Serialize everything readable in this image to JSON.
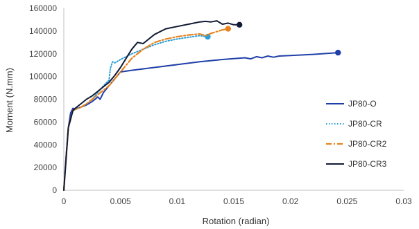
{
  "chart_data": {
    "type": "line",
    "xlabel": "Rotation (radian)",
    "ylabel": "Moment (N.mm)",
    "xlim": [
      0,
      0.03
    ],
    "ylim": [
      0,
      160000
    ],
    "x_ticks": [
      "0",
      "0.005",
      "0.01",
      "0.015",
      "0.02",
      "0.025",
      "0.03"
    ],
    "y_ticks": [
      "0",
      "20000",
      "40000",
      "60000",
      "80000",
      "100000",
      "120000",
      "140000",
      "160000"
    ],
    "grid": false,
    "legend_position": "right",
    "series": [
      {
        "name": "JP80-O",
        "color": "#1f3fa8",
        "dash": "solid",
        "end_marker": true,
        "x": [
          0,
          0.0002,
          0.0004,
          0.0006,
          0.0008,
          0.001,
          0.0015,
          0.002,
          0.0025,
          0.003,
          0.0032,
          0.0035,
          0.004,
          0.0045,
          0.005,
          0.006,
          0.008,
          0.01,
          0.012,
          0.014,
          0.016,
          0.0165,
          0.017,
          0.0175,
          0.018,
          0.0185,
          0.019,
          0.02,
          0.022,
          0.0242
        ],
        "y": [
          0,
          30000,
          55000,
          68000,
          72000,
          71500,
          73000,
          75000,
          78000,
          82000,
          80000,
          86000,
          92000,
          98000,
          104000,
          105500,
          108000,
          110500,
          113000,
          115000,
          116500,
          115500,
          117500,
          116500,
          118000,
          117000,
          118000,
          118500,
          119500,
          121000
        ]
      },
      {
        "name": "JP80-CR",
        "color": "#2a9fd6",
        "dash": "dotted",
        "end_marker": true,
        "x": [
          0,
          0.0004,
          0.0008,
          0.001,
          0.0015,
          0.002,
          0.0025,
          0.003,
          0.0035,
          0.004,
          0.0041,
          0.0043,
          0.0045,
          0.005,
          0.006,
          0.007,
          0.008,
          0.009,
          0.01,
          0.011,
          0.012,
          0.0127
        ],
        "y": [
          0,
          55000,
          70000,
          71000,
          73000,
          76000,
          80000,
          86000,
          92000,
          97000,
          107000,
          113000,
          112000,
          115000,
          120000,
          124000,
          128000,
          131000,
          133000,
          134500,
          136000,
          135000
        ]
      },
      {
        "name": "JP80-CR2",
        "color": "#e8821e",
        "dash": "dashdot",
        "end_marker": true,
        "x": [
          0,
          0.0004,
          0.0008,
          0.001,
          0.0015,
          0.002,
          0.0025,
          0.003,
          0.0035,
          0.004,
          0.0045,
          0.005,
          0.0055,
          0.006,
          0.007,
          0.008,
          0.009,
          0.01,
          0.011,
          0.012,
          0.0125,
          0.013,
          0.0135,
          0.014,
          0.0145
        ],
        "y": [
          0,
          55000,
          70000,
          71000,
          73000,
          76000,
          80000,
          84000,
          88000,
          92000,
          98000,
          104000,
          110000,
          116000,
          124000,
          130000,
          133000,
          135000,
          136500,
          137500,
          136000,
          138000,
          139500,
          141000,
          142000
        ]
      },
      {
        "name": "JP80-CR3",
        "color": "#111a33",
        "dash": "solid",
        "end_marker": true,
        "x": [
          0,
          0.0004,
          0.0008,
          0.001,
          0.0015,
          0.002,
          0.0025,
          0.003,
          0.0035,
          0.004,
          0.0045,
          0.005,
          0.0055,
          0.006,
          0.0065,
          0.007,
          0.008,
          0.009,
          0.01,
          0.011,
          0.012,
          0.0125,
          0.013,
          0.0135,
          0.014,
          0.0145,
          0.015,
          0.0155
        ],
        "y": [
          0,
          55000,
          70000,
          72000,
          76000,
          80000,
          83000,
          87000,
          91000,
          95000,
          101000,
          108000,
          116000,
          124000,
          130000,
          129000,
          137000,
          142000,
          144000,
          146000,
          148000,
          148500,
          148000,
          149000,
          146000,
          147000,
          145500,
          145500
        ]
      }
    ]
  }
}
